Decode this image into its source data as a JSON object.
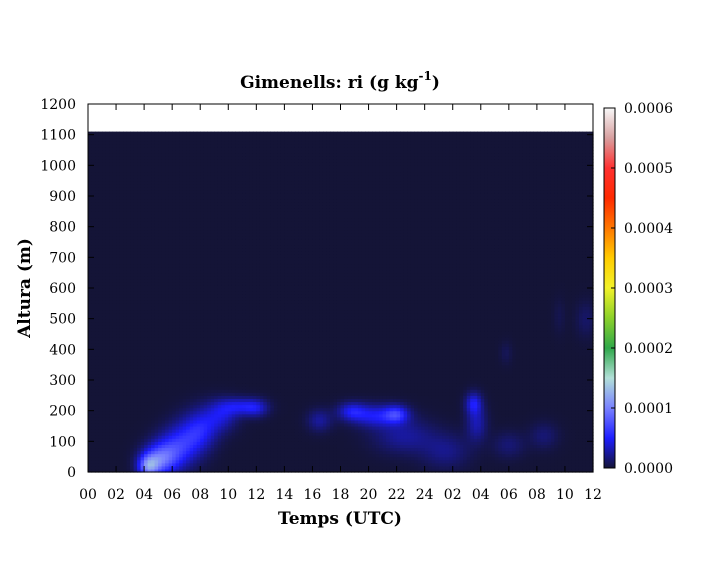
{
  "chart_data": {
    "type": "heatmap",
    "title": "Gimenells: ri (g kg",
    "title_superscript": "-1",
    "title_suffix": ")",
    "xlabel": "Temps (UTC)",
    "ylabel": "Altura (m)",
    "x_tick_labels": [
      "00",
      "02",
      "04",
      "06",
      "08",
      "10",
      "12",
      "14",
      "16",
      "18",
      "20",
      "22",
      "24",
      "02",
      "04",
      "06",
      "08",
      "10",
      "12"
    ],
    "xlim_hours": [
      0,
      36
    ],
    "y_ticks": [
      0,
      100,
      200,
      300,
      400,
      500,
      600,
      700,
      800,
      900,
      1000,
      1100,
      1200
    ],
    "ylim": [
      0,
      1200
    ],
    "data_top_m": 1110,
    "colorbar": {
      "ticks": [
        "0.0000",
        "0.0001",
        "0.0002",
        "0.0003",
        "0.0004",
        "0.0005",
        "0.0006"
      ],
      "range": [
        0,
        0.0006
      ],
      "stops": [
        {
          "v": 0.0,
          "color": "#141437"
        },
        {
          "v": 5e-05,
          "color": "#1e1eff"
        },
        {
          "v": 0.0001,
          "color": "#7a82ff"
        },
        {
          "v": 0.00015,
          "color": "#b2e0d8"
        },
        {
          "v": 0.0002,
          "color": "#2fa84a"
        },
        {
          "v": 0.00025,
          "color": "#8cd12a"
        },
        {
          "v": 0.0003,
          "color": "#f2f22a"
        },
        {
          "v": 0.00035,
          "color": "#ffcc00"
        },
        {
          "v": 0.0004,
          "color": "#ff7700"
        },
        {
          "v": 0.00045,
          "color": "#ff2a00"
        },
        {
          "v": 0.0005,
          "color": "#ff3030"
        },
        {
          "v": 0.00055,
          "color": "#d8a0a0"
        },
        {
          "v": 0.0006,
          "color": "#f8f8f8"
        }
      ]
    },
    "features": [
      {
        "t": 4.3,
        "z": 20,
        "st": 0.5,
        "sz": 25,
        "v": 8e-05
      },
      {
        "t": 5.0,
        "z": 40,
        "st": 0.8,
        "sz": 35,
        "v": 7e-05
      },
      {
        "t": 6.0,
        "z": 70,
        "st": 0.9,
        "sz": 45,
        "v": 5e-05
      },
      {
        "t": 7.2,
        "z": 110,
        "st": 0.9,
        "sz": 50,
        "v": 4e-05
      },
      {
        "t": 8.2,
        "z": 145,
        "st": 0.8,
        "sz": 45,
        "v": 3.5e-05
      },
      {
        "t": 9.5,
        "z": 185,
        "st": 0.8,
        "sz": 35,
        "v": 3.5e-05
      },
      {
        "t": 10.8,
        "z": 215,
        "st": 1.0,
        "sz": 20,
        "v": 4e-05
      },
      {
        "t": 12.0,
        "z": 210,
        "st": 0.6,
        "sz": 20,
        "v": 3e-05
      },
      {
        "t": 16.5,
        "z": 170,
        "st": 0.6,
        "sz": 25,
        "v": 2.5e-05
      },
      {
        "t": 18.8,
        "z": 200,
        "st": 0.7,
        "sz": 20,
        "v": 4e-05
      },
      {
        "t": 20.5,
        "z": 185,
        "st": 1.2,
        "sz": 25,
        "v": 4.5e-05
      },
      {
        "t": 22.0,
        "z": 190,
        "st": 0.6,
        "sz": 20,
        "v": 5e-05
      },
      {
        "t": 22.5,
        "z": 120,
        "st": 1.5,
        "sz": 40,
        "v": 2.5e-05
      },
      {
        "t": 25.5,
        "z": 70,
        "st": 1.2,
        "sz": 40,
        "v": 2e-05
      },
      {
        "t": 27.5,
        "z": 225,
        "st": 0.4,
        "sz": 25,
        "v": 4.5e-05
      },
      {
        "t": 27.7,
        "z": 160,
        "st": 0.5,
        "sz": 40,
        "v": 3e-05
      },
      {
        "t": 30.0,
        "z": 90,
        "st": 0.8,
        "sz": 30,
        "v": 1.5e-05
      },
      {
        "t": 32.5,
        "z": 120,
        "st": 0.7,
        "sz": 30,
        "v": 1.5e-05
      },
      {
        "t": 29.8,
        "z": 390,
        "st": 0.3,
        "sz": 25,
        "v": 8e-06
      },
      {
        "t": 35.5,
        "z": 500,
        "st": 0.5,
        "sz": 40,
        "v": 1.2e-05
      },
      {
        "t": 33.6,
        "z": 510,
        "st": 0.3,
        "sz": 40,
        "v": 6e-06
      }
    ]
  }
}
